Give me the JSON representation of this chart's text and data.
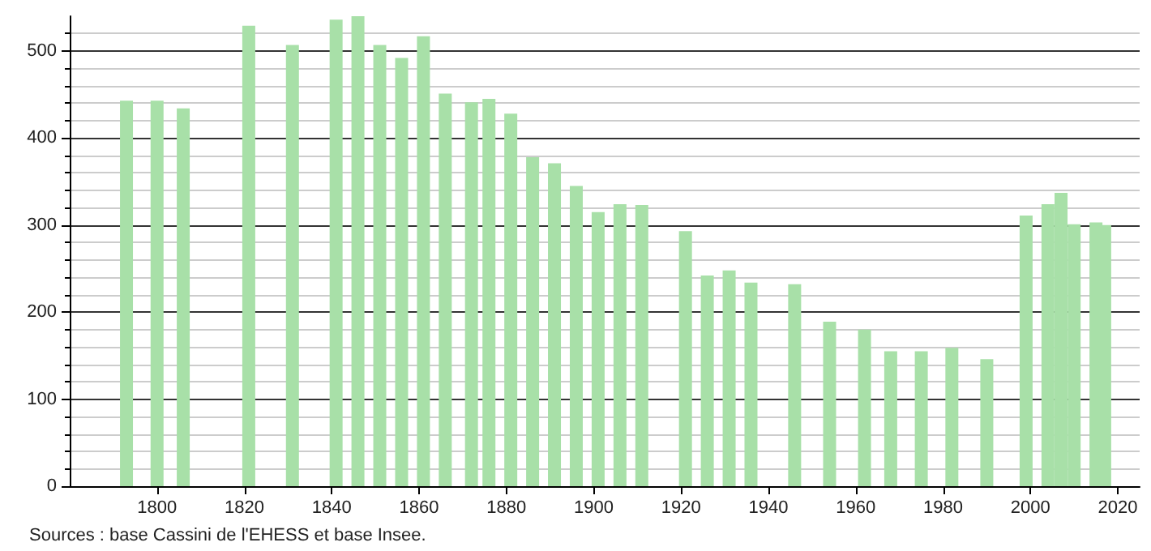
{
  "chart_data": {
    "type": "bar",
    "x": [
      1793,
      1800,
      1806,
      1821,
      1831,
      1841,
      1846,
      1851,
      1856,
      1861,
      1866,
      1872,
      1876,
      1881,
      1886,
      1891,
      1896,
      1901,
      1906,
      1911,
      1921,
      1926,
      1931,
      1936,
      1946,
      1954,
      1962,
      1968,
      1975,
      1982,
      1990,
      1999,
      2004,
      2007,
      2010,
      2015,
      2017
    ],
    "values": [
      443,
      443,
      434,
      529,
      507,
      536,
      540,
      507,
      492,
      517,
      451,
      441,
      445,
      428,
      378,
      371,
      345,
      315,
      324,
      323,
      293,
      242,
      248,
      234,
      232,
      189,
      180,
      155,
      155,
      159,
      146,
      311,
      324,
      337,
      301,
      303,
      300
    ],
    "color": "#a8e0a8",
    "xlim": [
      1780,
      2025
    ],
    "xticks": [
      1800,
      1820,
      1840,
      1860,
      1880,
      1900,
      1920,
      1940,
      1960,
      1980,
      2000,
      2020
    ],
    "ylim": [
      0,
      540
    ],
    "yticks": [
      0,
      100,
      200,
      300,
      400,
      500
    ],
    "grid": "y",
    "annotations": [
      "Sources : base Cassini de l'EHESS et base Insee."
    ]
  }
}
